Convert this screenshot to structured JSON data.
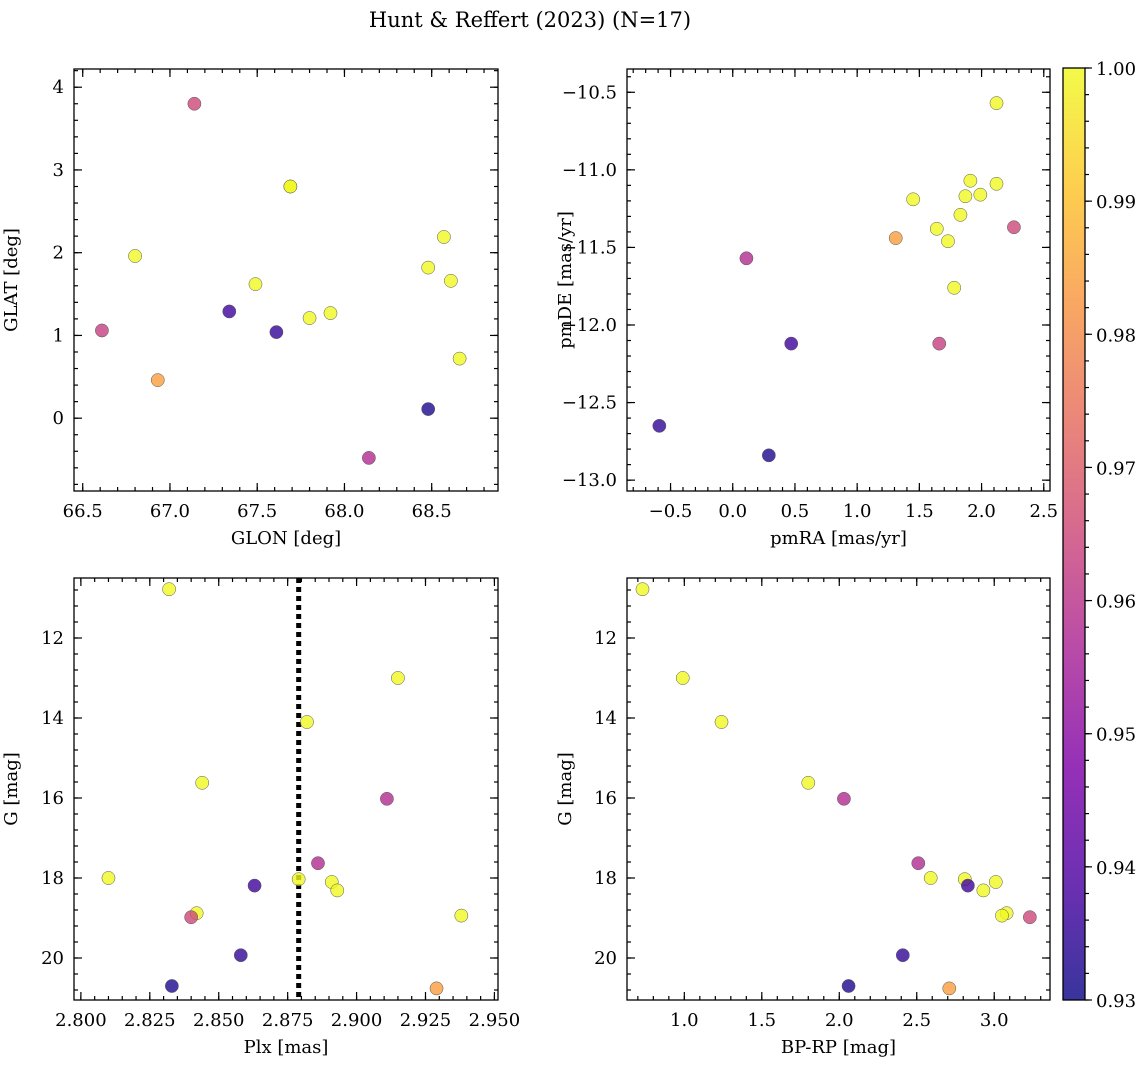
{
  "title": "Hunt & Reffert (2023) (N=17)",
  "colorbar": {
    "min": 0.93,
    "max": 1.0,
    "ticks": [
      0.93,
      0.94,
      0.95,
      0.96,
      0.97,
      0.98,
      0.99,
      1.0
    ],
    "tick_labels": [
      "0.93",
      "0.94",
      "0.95",
      "0.96",
      "0.97",
      "0.98",
      "0.99",
      "1.00"
    ],
    "colormap": "plasma"
  },
  "chart_data": [
    {
      "type": "scatter",
      "id": "glon-glat",
      "xlabel": "GLON [deg]",
      "ylabel": "GLAT [deg]",
      "xlim": [
        66.45,
        68.88
      ],
      "ylim": [
        -0.88,
        4.22
      ],
      "xticks": [
        66.5,
        67.0,
        67.5,
        68.0,
        68.5
      ],
      "xtick_labels": [
        "66.5",
        "67.0",
        "67.5",
        "68.0",
        "68.5"
      ],
      "yticks": [
        0,
        1,
        2,
        3,
        4
      ],
      "ytick_labels": [
        "0",
        "1",
        "2",
        "3",
        "4"
      ],
      "points": [
        {
          "x": 67.14,
          "y": 3.8,
          "c": 0.965
        },
        {
          "x": 67.69,
          "y": 2.8,
          "c": 0.999
        },
        {
          "x": 67.69,
          "y": 2.8,
          "c": 1.0
        },
        {
          "x": 66.8,
          "y": 1.96,
          "c": 1.0
        },
        {
          "x": 67.49,
          "y": 1.62,
          "c": 1.0
        },
        {
          "x": 68.57,
          "y": 2.19,
          "c": 1.0
        },
        {
          "x": 68.48,
          "y": 1.82,
          "c": 1.0
        },
        {
          "x": 68.61,
          "y": 1.66,
          "c": 1.0
        },
        {
          "x": 67.34,
          "y": 1.29,
          "c": 0.937
        },
        {
          "x": 67.61,
          "y": 1.04,
          "c": 0.935
        },
        {
          "x": 67.8,
          "y": 1.21,
          "c": 1.0
        },
        {
          "x": 67.92,
          "y": 1.27,
          "c": 1.0
        },
        {
          "x": 68.66,
          "y": 0.72,
          "c": 1.0
        },
        {
          "x": 66.61,
          "y": 1.06,
          "c": 0.963
        },
        {
          "x": 66.93,
          "y": 0.46,
          "c": 0.984
        },
        {
          "x": 68.48,
          "y": 0.11,
          "c": 0.932
        },
        {
          "x": 68.14,
          "y": -0.48,
          "c": 0.958
        }
      ]
    },
    {
      "type": "scatter",
      "id": "pm",
      "xlabel": "pmRA [mas/yr]",
      "ylabel": "pmDE [mas/yr]",
      "xlim": [
        -0.85,
        2.55
      ],
      "ylim": [
        -13.07,
        -10.35
      ],
      "xticks": [
        -0.5,
        0.0,
        0.5,
        1.0,
        1.5,
        2.0,
        2.5
      ],
      "xtick_labels": [
        "−0.5",
        "0.0",
        "0.5",
        "1.0",
        "1.5",
        "2.0",
        "2.5"
      ],
      "yticks": [
        -13.0,
        -12.5,
        -12.0,
        -11.5,
        -11.0,
        -10.5
      ],
      "ytick_labels": [
        "−13.0",
        "−12.5",
        "−12.0",
        "−11.5",
        "−11.0",
        "−10.5"
      ],
      "points": [
        {
          "x": 2.12,
          "y": -10.57,
          "c": 1.0
        },
        {
          "x": 1.91,
          "y": -11.07,
          "c": 1.0
        },
        {
          "x": 2.12,
          "y": -11.09,
          "c": 1.0
        },
        {
          "x": 1.87,
          "y": -11.17,
          "c": 1.0
        },
        {
          "x": 1.99,
          "y": -11.16,
          "c": 1.0
        },
        {
          "x": 1.45,
          "y": -11.19,
          "c": 1.0
        },
        {
          "x": 1.83,
          "y": -11.29,
          "c": 1.0
        },
        {
          "x": 1.64,
          "y": -11.38,
          "c": 1.0
        },
        {
          "x": 2.26,
          "y": -11.37,
          "c": 0.965
        },
        {
          "x": 1.73,
          "y": -11.46,
          "c": 1.0
        },
        {
          "x": 1.31,
          "y": -11.44,
          "c": 0.984
        },
        {
          "x": 0.11,
          "y": -11.57,
          "c": 0.958
        },
        {
          "x": 1.78,
          "y": -11.76,
          "c": 1.0
        },
        {
          "x": 0.47,
          "y": -12.12,
          "c": 0.937
        },
        {
          "x": 1.66,
          "y": -12.12,
          "c": 0.963
        },
        {
          "x": -0.59,
          "y": -12.65,
          "c": 0.935
        },
        {
          "x": 0.29,
          "y": -12.84,
          "c": 0.932
        }
      ]
    },
    {
      "type": "scatter",
      "id": "plx-g",
      "xlabel": "Plx [mas]",
      "ylabel": "G [mag]",
      "xlim": [
        2.7975,
        2.9513
      ],
      "ylim": [
        21.05,
        10.5
      ],
      "y_inverted": true,
      "xticks": [
        2.8,
        2.825,
        2.85,
        2.875,
        2.9,
        2.925,
        2.95
      ],
      "xtick_labels": [
        "2.800",
        "2.825",
        "2.850",
        "2.875",
        "2.900",
        "2.925",
        "2.950"
      ],
      "yticks": [
        12,
        14,
        16,
        18,
        20
      ],
      "ytick_labels": [
        "12",
        "14",
        "16",
        "18",
        "20"
      ],
      "vline": {
        "x": 2.879,
        "style": "dotted"
      },
      "points": [
        {
          "x": 2.832,
          "y": 10.78,
          "c": 1.0
        },
        {
          "x": 2.915,
          "y": 13.0,
          "c": 1.0
        },
        {
          "x": 2.882,
          "y": 14.1,
          "c": 1.0
        },
        {
          "x": 2.844,
          "y": 15.62,
          "c": 1.0
        },
        {
          "x": 2.911,
          "y": 16.02,
          "c": 0.958
        },
        {
          "x": 2.886,
          "y": 17.63,
          "c": 0.958
        },
        {
          "x": 2.81,
          "y": 18.0,
          "c": 1.0
        },
        {
          "x": 2.879,
          "y": 18.03,
          "c": 1.0
        },
        {
          "x": 2.891,
          "y": 18.1,
          "c": 1.0
        },
        {
          "x": 2.863,
          "y": 18.19,
          "c": 0.937
        },
        {
          "x": 2.893,
          "y": 18.31,
          "c": 1.0
        },
        {
          "x": 2.842,
          "y": 18.88,
          "c": 1.0
        },
        {
          "x": 2.84,
          "y": 18.98,
          "c": 0.965
        },
        {
          "x": 2.938,
          "y": 18.94,
          "c": 1.0
        },
        {
          "x": 2.858,
          "y": 19.93,
          "c": 0.935
        },
        {
          "x": 2.833,
          "y": 20.7,
          "c": 0.932
        },
        {
          "x": 2.929,
          "y": 20.76,
          "c": 0.984
        }
      ]
    },
    {
      "type": "scatter",
      "id": "cmd",
      "xlabel": "BP-RP [mag]",
      "ylabel": "G [mag]",
      "xlim": [
        0.63,
        3.36
      ],
      "ylim": [
        21.05,
        10.5
      ],
      "y_inverted": true,
      "xticks": [
        1.0,
        1.5,
        2.0,
        2.5,
        3.0
      ],
      "xtick_labels": [
        "1.0",
        "1.5",
        "2.0",
        "2.5",
        "3.0"
      ],
      "yticks": [
        12,
        14,
        16,
        18,
        20
      ],
      "ytick_labels": [
        "12",
        "14",
        "16",
        "18",
        "20"
      ],
      "points": [
        {
          "x": 0.73,
          "y": 10.78,
          "c": 1.0
        },
        {
          "x": 0.99,
          "y": 13.0,
          "c": 1.0
        },
        {
          "x": 1.24,
          "y": 14.1,
          "c": 1.0
        },
        {
          "x": 1.8,
          "y": 15.62,
          "c": 1.0
        },
        {
          "x": 2.03,
          "y": 16.02,
          "c": 0.958
        },
        {
          "x": 2.51,
          "y": 17.63,
          "c": 0.958
        },
        {
          "x": 2.59,
          "y": 18.0,
          "c": 1.0
        },
        {
          "x": 2.81,
          "y": 18.03,
          "c": 1.0
        },
        {
          "x": 2.83,
          "y": 18.19,
          "c": 0.937
        },
        {
          "x": 3.01,
          "y": 18.1,
          "c": 1.0
        },
        {
          "x": 2.93,
          "y": 18.31,
          "c": 1.0
        },
        {
          "x": 3.08,
          "y": 18.88,
          "c": 1.0
        },
        {
          "x": 3.05,
          "y": 18.94,
          "c": 1.0
        },
        {
          "x": 3.23,
          "y": 18.98,
          "c": 0.965
        },
        {
          "x": 2.41,
          "y": 19.93,
          "c": 0.935
        },
        {
          "x": 2.06,
          "y": 20.7,
          "c": 0.932
        },
        {
          "x": 2.71,
          "y": 20.76,
          "c": 0.984
        }
      ]
    }
  ]
}
